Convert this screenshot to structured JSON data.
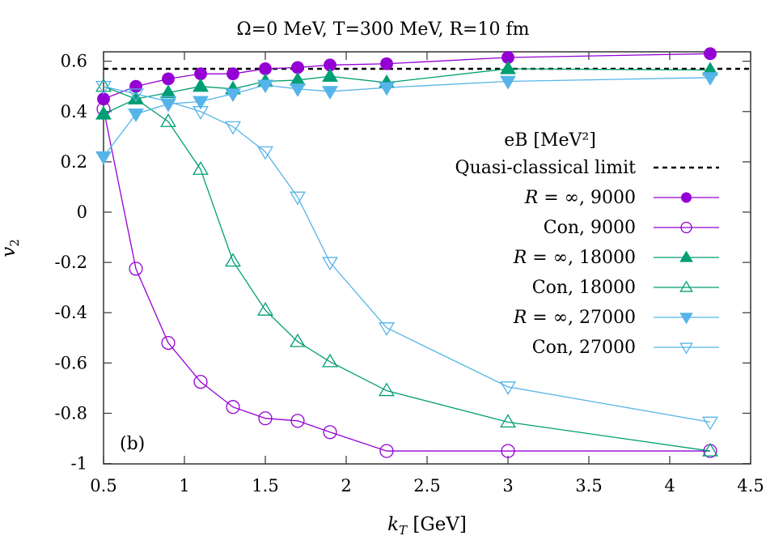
{
  "title": "Ω=0 MeV, T=300 MeV, R=10 fm",
  "panel_label": "(b)",
  "chart_data": {
    "type": "line",
    "title": "Ω=0 MeV, T=300 MeV, R=10 fm",
    "xlabel": "k_T [GeV]",
    "ylabel": "v_2",
    "xlim": [
      0.5,
      4.5
    ],
    "ylim": [
      -1,
      0.64
    ],
    "xticks": [
      0.5,
      1,
      1.5,
      2,
      2.5,
      3,
      3.5,
      4,
      4.5
    ],
    "xtick_labels": [
      "0.5",
      "1",
      "1.5",
      "2",
      "2.5",
      "3",
      "3.5",
      "4",
      "4.5"
    ],
    "yticks": [
      0.6,
      0.4,
      0.2,
      0,
      -0.2,
      -0.4,
      -0.6,
      -0.8,
      -1
    ],
    "ytick_labels": [
      "0.6",
      "0.4",
      "0.2",
      "0",
      "-0.2",
      "-0.4",
      "-0.6",
      "-0.8",
      "-1"
    ],
    "grid": false,
    "legend_title": "eB [MeV²]",
    "legend_position": "upper right",
    "x": [
      0.5,
      0.7,
      0.9,
      1.1,
      1.3,
      1.5,
      1.7,
      1.9,
      2.25,
      3.0,
      4.25
    ],
    "reference_lines": [
      {
        "name": "Quasi-classical limit",
        "y": 0.57,
        "color": "#000000",
        "style": "dotted"
      }
    ],
    "series": [
      {
        "name": "R = ∞, 9000",
        "color": "#9400d3",
        "marker": "filled-circle",
        "values": [
          0.45,
          0.5,
          0.53,
          0.55,
          0.55,
          0.57,
          0.575,
          0.585,
          0.59,
          0.615,
          0.63
        ]
      },
      {
        "name": "Con, 9000",
        "color": "#9400d3",
        "marker": "open-circle",
        "values": [
          0.41,
          -0.225,
          -0.52,
          -0.675,
          -0.775,
          -0.82,
          -0.83,
          -0.875,
          -0.95,
          -0.95,
          -0.95
        ]
      },
      {
        "name": "R = ∞, 18000",
        "color": "#009e73",
        "marker": "filled-triangle-up",
        "values": [
          0.39,
          0.45,
          0.475,
          0.5,
          0.49,
          0.52,
          0.525,
          0.54,
          0.515,
          0.57,
          0.565
        ]
      },
      {
        "name": "Con, 18000",
        "color": "#009e73",
        "marker": "open-triangle-up",
        "values": [
          0.5,
          0.45,
          0.36,
          0.17,
          -0.195,
          -0.39,
          -0.515,
          -0.595,
          -0.71,
          -0.835,
          -0.95
        ]
      },
      {
        "name": "R = ∞, 27000",
        "color": "#56b4e9",
        "marker": "filled-triangle-down",
        "values": [
          0.22,
          0.39,
          0.43,
          0.44,
          0.47,
          0.505,
          0.49,
          0.48,
          0.495,
          0.52,
          0.535
        ]
      },
      {
        "name": "Con, 27000",
        "color": "#56b4e9",
        "marker": "open-triangle-down",
        "values": [
          0.5,
          0.47,
          0.44,
          0.4,
          0.34,
          0.24,
          0.06,
          -0.2,
          -0.46,
          -0.695,
          -0.835
        ]
      }
    ]
  }
}
